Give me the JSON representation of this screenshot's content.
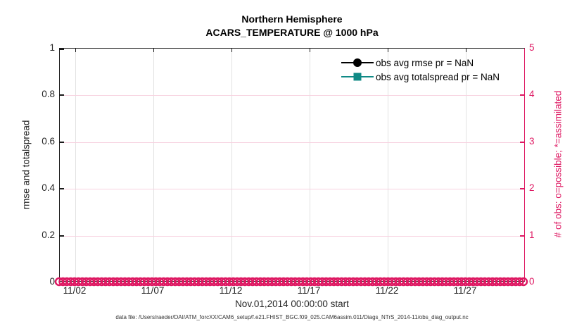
{
  "title": {
    "line1": "Northern Hemisphere",
    "line2": "ACARS_TEMPERATURE @ 1000 hPa"
  },
  "left_axis": {
    "label": "rmse and totalspread",
    "ticks": [
      "1",
      "0.8",
      "0.6",
      "0.4",
      "0.2",
      "0"
    ]
  },
  "right_axis": {
    "label": "# of obs: o=possible; *=assimilated",
    "ticks": [
      "5",
      "4",
      "3",
      "2",
      "1",
      "0"
    ]
  },
  "x_axis": {
    "ticks": [
      "11/02",
      "11/07",
      "11/12",
      "11/17",
      "11/22",
      "11/27"
    ],
    "label": "Nov.01,2014 00:00:00 start"
  },
  "legend": [
    {
      "label": "obs avg rmse pr = NaN",
      "color": "#000000",
      "marker": "circle"
    },
    {
      "label": "obs avg totalspread pr = NaN",
      "color": "#108a86",
      "marker": "square"
    }
  ],
  "footer": "data file: /Users/raeder/DAI/ATM_forcXX/CAM6_setup/f.e21.FHIST_BGC.f09_025.CAM6assim.011/Diags_NTrS_2014-11/obs_diag_output.nc",
  "colors": {
    "obs_pink": "#de1862",
    "totalspread_teal": "#108a86",
    "rmse_black": "#000000",
    "vgrid_gray": "#e2e2e2",
    "hgrid_pink": "#f7d2e0"
  },
  "chart_data": {
    "type": "line",
    "title": "Northern Hemisphere — ACARS_TEMPERATURE @ 1000 hPa",
    "xlabel": "Nov.01,2014 00:00:00 start",
    "x_ticks": [
      "11/02",
      "11/07",
      "11/12",
      "11/17",
      "11/22",
      "11/27"
    ],
    "x_range_days": [
      "Nov 01 2014",
      "Dec 01 2014"
    ],
    "left_ylabel": "rmse and totalspread",
    "left_ylim": [
      0,
      1
    ],
    "left_yticks": [
      0,
      0.2,
      0.4,
      0.6,
      0.8,
      1
    ],
    "right_ylabel": "# of obs: o=possible; *=assimilated",
    "right_ylim": [
      0,
      5
    ],
    "right_yticks": [
      0,
      1,
      2,
      3,
      4,
      5
    ],
    "grid": true,
    "legend_position": "upper right inside, no box",
    "series": [
      {
        "name": "obs avg rmse pr = NaN",
        "axis": "left",
        "marker": "filled circle",
        "color": "#000000",
        "values": "NaN — no line drawn"
      },
      {
        "name": "obs avg totalspread pr = NaN",
        "axis": "left",
        "marker": "filled square",
        "color": "#108a86",
        "values": "NaN — no line drawn"
      },
      {
        "name": "# of obs possible (o markers)",
        "axis": "right",
        "marker": "open circle",
        "color": "#de1862",
        "value_constant": 0,
        "note": "dense band of overlapping o markers at y=0 spanning entire x-axis"
      }
    ]
  }
}
